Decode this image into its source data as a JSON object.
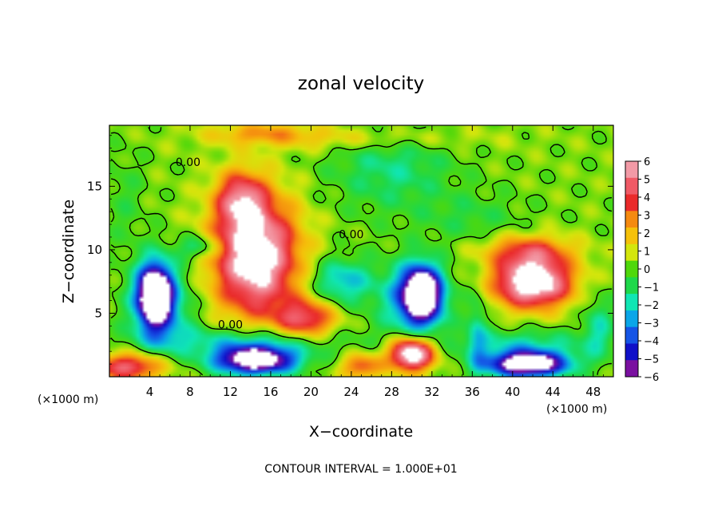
{
  "chart_data": {
    "type": "heatmap",
    "title": "zonal velocity",
    "xlabel": "X−coordinate",
    "ylabel": "Z−coordinate",
    "x_unit_left": "(×1000 m)",
    "x_unit_right": "(×1000 m)",
    "footer": "CONTOUR INTERVAL = 1.000E+01",
    "xlim": [
      0,
      50
    ],
    "ylim": [
      0,
      19.8
    ],
    "x_ticks": [
      4,
      8,
      12,
      16,
      20,
      24,
      28,
      32,
      36,
      40,
      44,
      48
    ],
    "y_ticks": [
      5,
      10,
      15
    ],
    "colorbar": {
      "range": [
        -6,
        6
      ],
      "tick_labels": [
        "6",
        "5",
        "4",
        "3",
        "2",
        "1",
        "0",
        "−1",
        "−2",
        "−3",
        "−4",
        "−5",
        "−6"
      ],
      "colors": [
        "#f29aa6",
        "#f05a66",
        "#ea2a2a",
        "#f58a10",
        "#f5c10a",
        "#d4e60c",
        "#4fd80b",
        "#1ed84a",
        "#10e6b4",
        "#0aa6e8",
        "#1555e6",
        "#1010c8",
        "#7a10a0"
      ]
    },
    "contour_labels": [
      {
        "text": "0.00",
        "x": 7.8,
        "y": 16.6
      },
      {
        "text": "0.00",
        "x": 24.0,
        "y": 10.9
      },
      {
        "text": "0.00",
        "x": 12.0,
        "y": 3.8
      }
    ],
    "background_value": 0.3,
    "features": [
      {
        "x": 14.5,
        "y": 9.5,
        "sx": 4.2,
        "sy": 4.6,
        "a": 7.5
      },
      {
        "x": 13.0,
        "y": 14.0,
        "sx": 2.4,
        "sy": 2.2,
        "a": 4.0
      },
      {
        "x": 19.5,
        "y": 4.5,
        "sx": 3.0,
        "sy": 1.6,
        "a": 4.5
      },
      {
        "x": 30.0,
        "y": 1.8,
        "sx": 2.2,
        "sy": 1.3,
        "a": 8.0
      },
      {
        "x": 42.0,
        "y": 7.5,
        "sx": 3.8,
        "sy": 2.0,
        "a": 8.0
      },
      {
        "x": 41.5,
        "y": 10.0,
        "sx": 4.5,
        "sy": 1.2,
        "a": 3.0
      },
      {
        "x": 2.0,
        "y": 0.8,
        "sx": 3.5,
        "sy": 1.1,
        "a": 5.0
      },
      {
        "x": 25.0,
        "y": 0.8,
        "sx": 2.0,
        "sy": 1.0,
        "a": 3.5
      },
      {
        "x": 24.0,
        "y": 18.8,
        "sx": 12.0,
        "sy": 1.0,
        "a": 1.5
      },
      {
        "x": 15.0,
        "y": 19.2,
        "sx": 5.0,
        "sy": 0.8,
        "a": 1.8
      },
      {
        "x": 4.5,
        "y": 6.5,
        "sx": 1.6,
        "sy": 2.3,
        "a": -9.0
      },
      {
        "x": 5.0,
        "y": 5.5,
        "sx": 3.0,
        "sy": 3.5,
        "a": -3.5
      },
      {
        "x": 31.0,
        "y": 6.5,
        "sx": 1.9,
        "sy": 2.1,
        "a": -9.0
      },
      {
        "x": 30.0,
        "y": 6.0,
        "sx": 3.5,
        "sy": 3.0,
        "a": -3.0
      },
      {
        "x": 14.5,
        "y": 1.3,
        "sx": 4.0,
        "sy": 1.1,
        "a": -9.0
      },
      {
        "x": 41.5,
        "y": 1.0,
        "sx": 4.0,
        "sy": 1.0,
        "a": -9.0
      },
      {
        "x": 14.0,
        "y": 2.8,
        "sx": 9.0,
        "sy": 1.2,
        "a": -2.5
      },
      {
        "x": 41.0,
        "y": 2.6,
        "sx": 7.0,
        "sy": 1.2,
        "a": -2.0
      },
      {
        "x": 23.0,
        "y": 7.5,
        "sx": 3.0,
        "sy": 1.8,
        "a": -3.0
      },
      {
        "x": 28.0,
        "y": 16.5,
        "sx": 6.0,
        "sy": 3.5,
        "a": -1.8
      },
      {
        "x": 36.0,
        "y": 12.5,
        "sx": 5.0,
        "sy": 2.0,
        "a": -1.0
      },
      {
        "x": 9.0,
        "y": 10.2,
        "sx": 2.0,
        "sy": 0.9,
        "a": -2.5
      },
      {
        "x": 1.5,
        "y": 14.0,
        "sx": 2.0,
        "sy": 4.0,
        "a": -0.8
      },
      {
        "x": 48.5,
        "y": 4.0,
        "sx": 1.5,
        "sy": 2.5,
        "a": -2.0
      },
      {
        "x": 36.5,
        "y": 3.5,
        "sx": 1.0,
        "sy": 3.5,
        "a": -2.0
      }
    ]
  }
}
